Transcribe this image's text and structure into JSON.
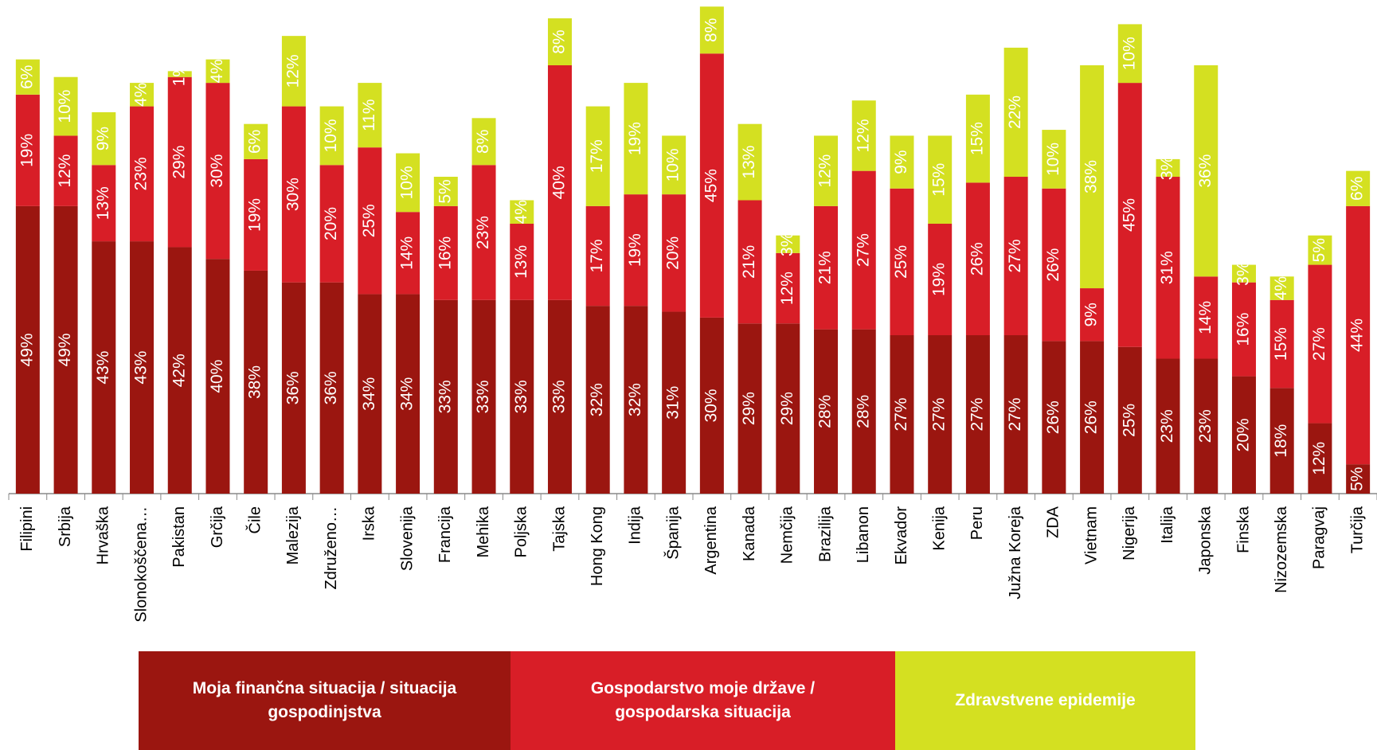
{
  "chart_data": {
    "type": "stacked-bar",
    "categories": [
      "Filipini",
      "Srbija",
      "Hrvaška",
      "Slonokoščena…",
      "Pakistan",
      "Grčija",
      "Čile",
      "Malezija",
      "Združeno…",
      "Irska",
      "Slovenija",
      "Francija",
      "Mehika",
      "Poljska",
      "Tajska",
      "Hong Kong",
      "Indija",
      "Španija",
      "Argentina",
      "Kanada",
      "Nemčija",
      "Brazilija",
      "Libanon",
      "Ekvador",
      "Kenija",
      "Peru",
      "Južna Koreja",
      "ZDA",
      "Vietnam",
      "Nigerija",
      "Italija",
      "Japonska",
      "Finska",
      "Nizozemska",
      "Paragvaj",
      "Turčija"
    ],
    "series": [
      {
        "name": "Moja finančna situacija / situacija gospodinjstva",
        "color": "#9b1610",
        "values": [
          49,
          49,
          43,
          43,
          42,
          40,
          38,
          36,
          36,
          34,
          34,
          33,
          33,
          33,
          33,
          32,
          32,
          31,
          30,
          29,
          29,
          28,
          28,
          27,
          27,
          27,
          27,
          26,
          26,
          25,
          23,
          23,
          20,
          18,
          12,
          5
        ],
        "value_labels": [
          "49%",
          "49%",
          "43%",
          "43%",
          "42%",
          "40%",
          "38%",
          "36%",
          "36%",
          "34%",
          "34%",
          "33%",
          "33%",
          "33%",
          "33%",
          "32%",
          "32%",
          "31%",
          "30%",
          "29%",
          "29%",
          "28%",
          "28%",
          "27%",
          "27%",
          "27%",
          "27%",
          "26%",
          "26%",
          "25%",
          "23%",
          "23%",
          "20%",
          "18%",
          "12%",
          "5%"
        ]
      },
      {
        "name": "Gospodarstvo moje države / gospodarska situacija",
        "color": "#d81e27",
        "values": [
          19,
          12,
          13,
          23,
          29,
          30,
          19,
          30,
          20,
          25,
          14,
          16,
          23,
          13,
          40,
          17,
          19,
          20,
          45,
          21,
          12,
          21,
          27,
          25,
          19,
          26,
          27,
          26,
          9,
          45,
          31,
          14,
          16,
          15,
          27,
          44
        ],
        "value_labels": [
          "19%",
          "12%",
          "13%",
          "23%",
          "29%",
          "30%",
          "19%",
          "30%",
          "20%",
          "25%",
          "14%",
          "16%",
          "23%",
          "13%",
          "40%",
          "17%",
          "19%",
          "20%",
          "45%",
          "21%",
          "12%",
          "21%",
          "27%",
          "25%",
          "19%",
          "26%",
          "27%",
          "26%",
          "9%",
          "45%",
          "31%",
          "14%",
          "16%",
          "15%",
          "27%",
          "44%"
        ]
      },
      {
        "name": "Zdravstvene epidemije",
        "color": "#d4e021",
        "values": [
          6,
          10,
          9,
          4,
          1,
          4,
          6,
          12,
          10,
          11,
          10,
          5,
          8,
          4,
          8,
          17,
          19,
          10,
          8,
          13,
          3,
          12,
          12,
          9,
          15,
          15,
          22,
          10,
          38,
          10,
          3,
          36,
          3,
          4,
          5,
          6
        ],
        "value_labels": [
          "6%",
          "10%",
          "9%",
          "4%",
          "1%",
          "4%",
          "6%",
          "12%",
          "10%",
          "11%",
          "10%",
          "5%",
          "8%",
          "4%",
          "8%",
          "17%",
          "19%",
          "10%",
          "8%",
          "13%",
          "3%",
          "12%",
          "12%",
          "9%",
          "15%",
          "15%",
          "22%",
          "10%",
          "38%",
          "10%",
          "3%",
          "36%",
          "3%",
          "4%",
          "5%",
          "6%"
        ]
      }
    ]
  }
}
